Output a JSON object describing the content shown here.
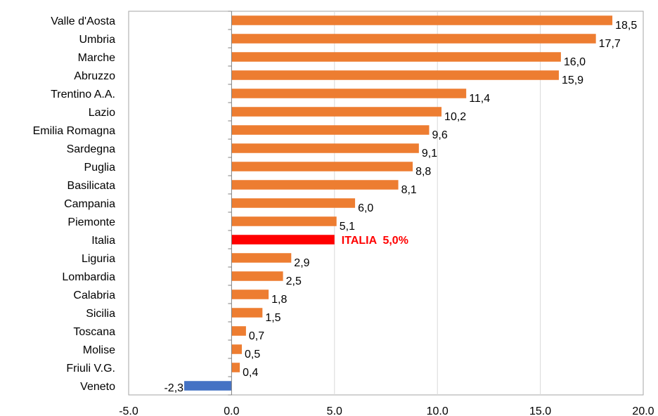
{
  "chart_data": {
    "type": "bar",
    "orientation": "horizontal",
    "categories": [
      "Valle d'Aosta",
      "Umbria",
      "Marche",
      "Abruzzo",
      "Trentino A.A.",
      "Lazio",
      "Emilia Romagna",
      "Sardegna",
      "Puglia",
      "Basilicata",
      "Campania",
      "Piemonte",
      "Italia",
      "Liguria",
      "Lombardia",
      "Calabria",
      "Sicilia",
      "Toscana",
      "Molise",
      "Friuli V.G.",
      "Veneto"
    ],
    "values": [
      18.5,
      17.7,
      16.0,
      15.9,
      11.4,
      10.2,
      9.6,
      9.1,
      8.8,
      8.1,
      6.0,
      5.1,
      5.0,
      2.9,
      2.5,
      1.8,
      1.5,
      0.7,
      0.5,
      0.4,
      -2.3
    ],
    "value_labels": [
      "18,5",
      "17,7",
      "16,0",
      "15,9",
      "11,4",
      "10,2",
      "9,6",
      "9,1",
      "8,8",
      "8,1",
      "6,0",
      "5,1",
      "ITALIA  5,0%",
      "2,9",
      "2,5",
      "1,8",
      "1,5",
      "0,7",
      "0,5",
      "0,4",
      "-2,3"
    ],
    "xlim": [
      -5.0,
      20.0
    ],
    "x_ticks": [
      -5.0,
      0.0,
      5.0,
      10.0,
      15.0,
      20.0
    ],
    "x_tick_labels": [
      "-5.0",
      "0.0",
      "5.0",
      "10.0",
      "15.0",
      "20.0"
    ],
    "grid": "vertical",
    "highlight_category": "Italia",
    "colors": {
      "positive": "#ED7D31",
      "negative": "#4472C4",
      "highlight": "#FF0000",
      "grid": "#D9D9D9",
      "axis": "#808080",
      "border": "#A6A6A6"
    }
  }
}
